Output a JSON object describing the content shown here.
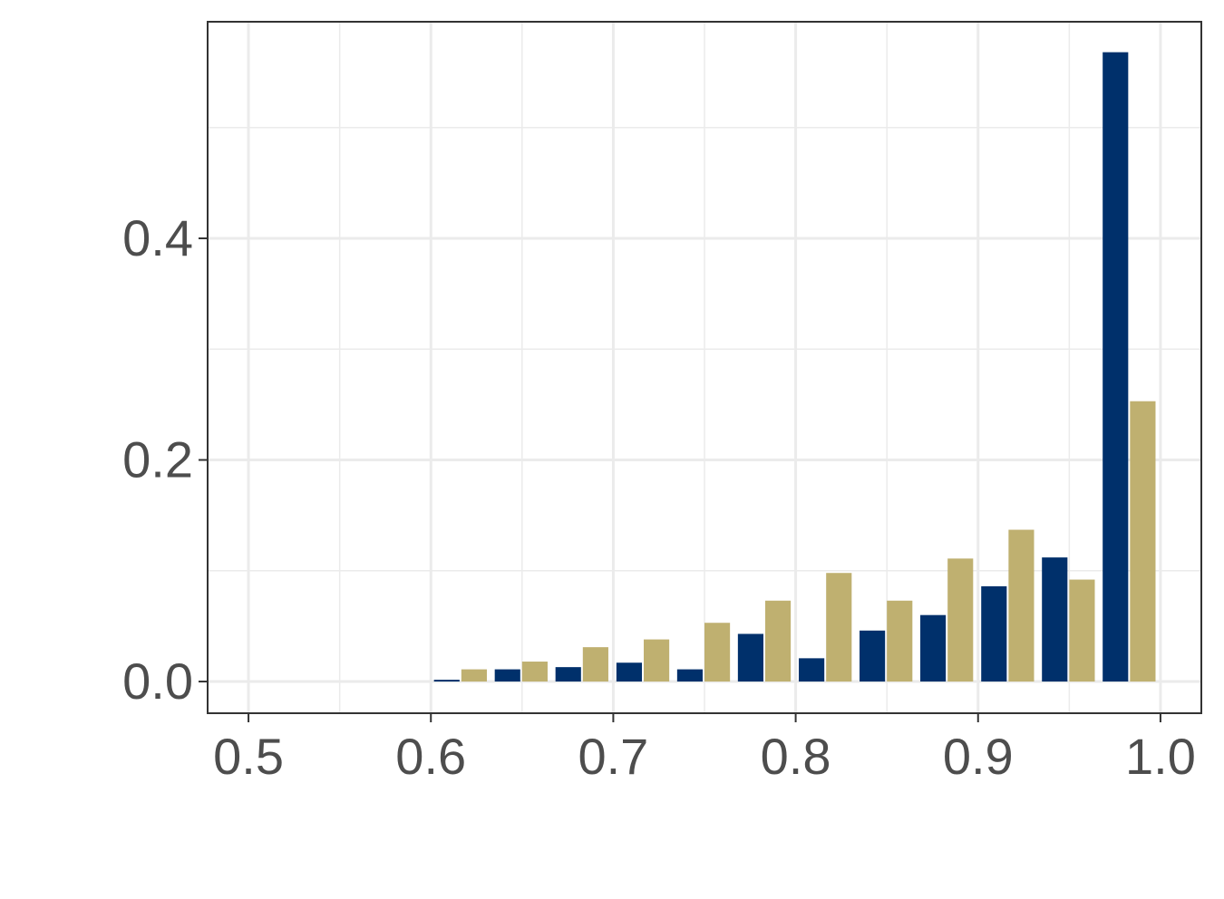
{
  "chart_data": {
    "type": "bar",
    "x": [
      0.6167,
      0.65,
      0.6833,
      0.7167,
      0.75,
      0.7833,
      0.8167,
      0.85,
      0.8833,
      0.9167,
      0.95,
      0.9833
    ],
    "series": [
      {
        "color": "#00306b",
        "values": [
          0.0016,
          0.011,
          0.013,
          0.017,
          0.011,
          0.043,
          0.021,
          0.046,
          0.06,
          0.086,
          0.112,
          0.568
        ]
      },
      {
        "color": "#bfb070",
        "values": [
          0.011,
          0.018,
          0.031,
          0.038,
          0.053,
          0.073,
          0.098,
          0.073,
          0.111,
          0.137,
          0.092,
          0.253
        ]
      }
    ],
    "xlim": [
      0.4776,
      1.0224
    ],
    "ylim": [
      -0.0286,
      0.5955
    ],
    "xticks": [
      0.5,
      0.6,
      0.7,
      0.8,
      0.9,
      {
        "value": 1,
        "label": "1.0"
      }
    ],
    "yticks": [
      {
        "value": 0,
        "label": "0.0"
      },
      0.2,
      0.4
    ],
    "grid": true
  }
}
